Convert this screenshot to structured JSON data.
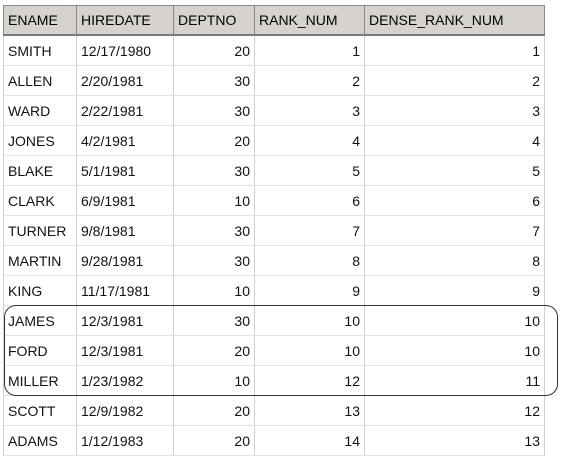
{
  "table": {
    "columns": [
      "ENAME",
      "HIREDATE",
      "DEPTNO",
      "RANK_NUM",
      "DENSE_RANK_NUM"
    ],
    "rows": [
      [
        "SMITH",
        "12/17/1980",
        "20",
        "1",
        "1"
      ],
      [
        "ALLEN",
        "2/20/1981",
        "30",
        "2",
        "2"
      ],
      [
        "WARD",
        "2/22/1981",
        "30",
        "3",
        "3"
      ],
      [
        "JONES",
        "4/2/1981",
        "20",
        "4",
        "4"
      ],
      [
        "BLAKE",
        "5/1/1981",
        "30",
        "5",
        "5"
      ],
      [
        "CLARK",
        "6/9/1981",
        "10",
        "6",
        "6"
      ],
      [
        "TURNER",
        "9/8/1981",
        "30",
        "7",
        "7"
      ],
      [
        "MARTIN",
        "9/28/1981",
        "30",
        "8",
        "8"
      ],
      [
        "KING",
        "11/17/1981",
        "10",
        "9",
        "9"
      ],
      [
        "JAMES",
        "12/3/1981",
        "30",
        "10",
        "10"
      ],
      [
        "FORD",
        "12/3/1981",
        "20",
        "10",
        "10"
      ],
      [
        "MILLER",
        "1/23/1982",
        "10",
        "12",
        "11"
      ],
      [
        "SCOTT",
        "12/9/1982",
        "20",
        "13",
        "12"
      ],
      [
        "ADAMS",
        "1/12/1983",
        "20",
        "14",
        "13"
      ]
    ],
    "numeric_columns": [
      2,
      3,
      4
    ],
    "highlighted_rows": [
      9,
      10,
      11
    ]
  },
  "colors": {
    "header_background": "#d6d3ce",
    "highlight_border": "#333333"
  }
}
